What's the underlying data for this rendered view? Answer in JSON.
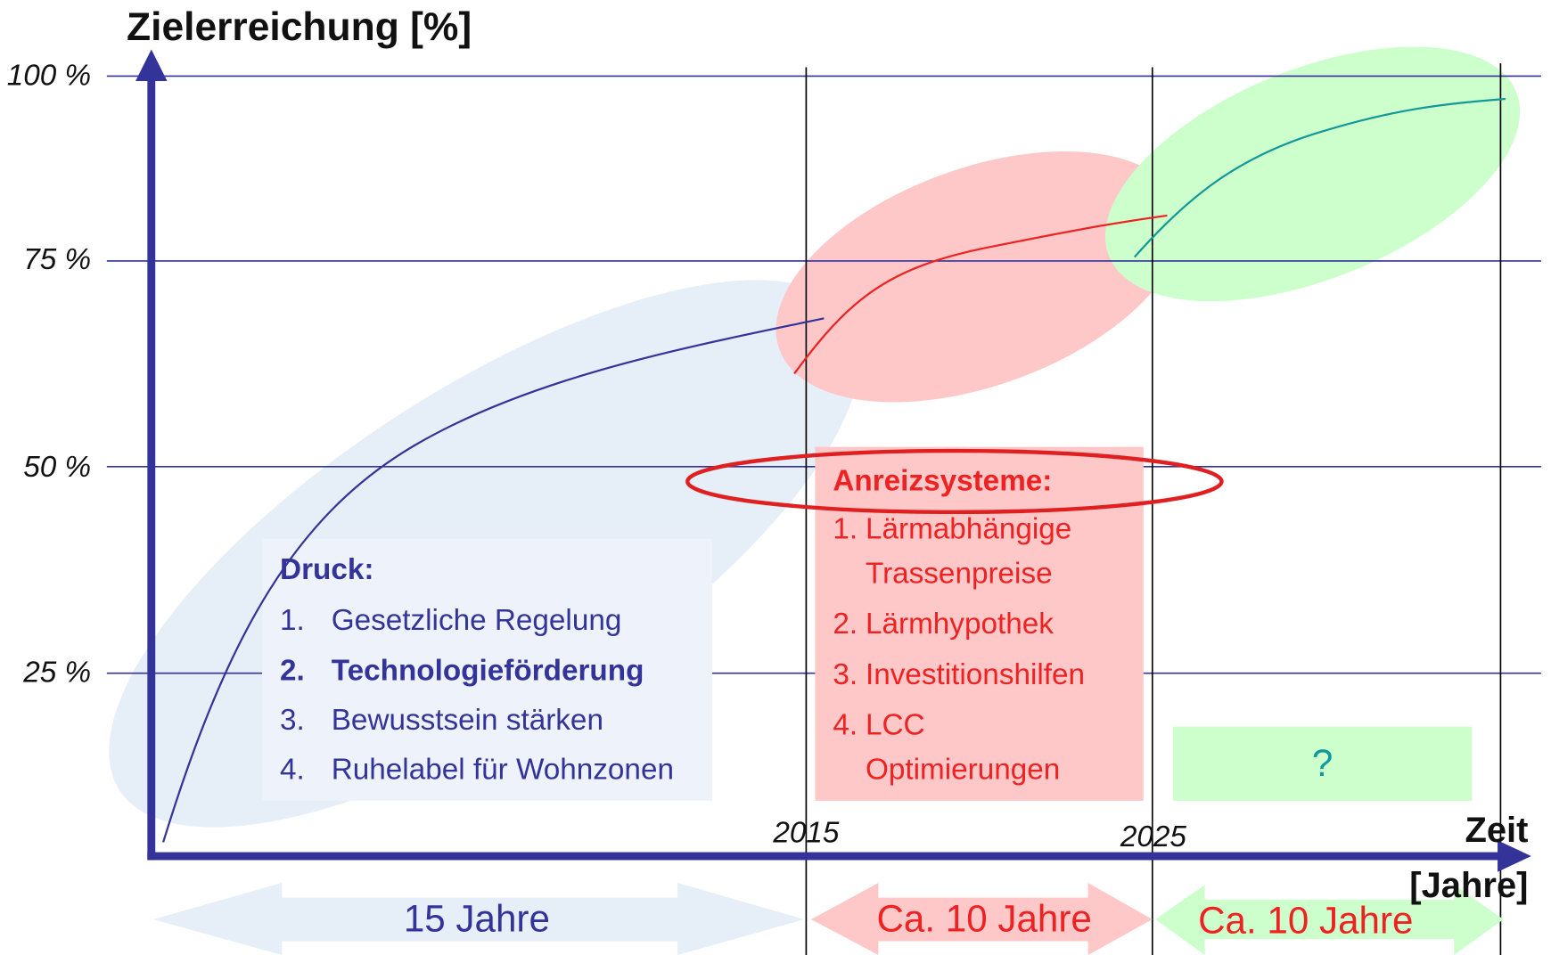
{
  "axis": {
    "y_label": "Zielerreichung [%]",
    "y_ticks": [
      "100 %",
      "75 %",
      "50 %",
      "25 %"
    ],
    "x_label": [
      "Zeit",
      "[Jahre]"
    ],
    "x_ticks": [
      "2015",
      "2025"
    ]
  },
  "boxes": [
    {
      "title": "Druck:",
      "items": [
        {
          "number": "1.",
          "lines": [
            "Gesetzliche Regelung"
          ]
        },
        {
          "number": "2.",
          "lines": [
            "Technologieförderung"
          ]
        },
        {
          "number": "3.",
          "lines": [
            "Bewusstsein stärken"
          ]
        },
        {
          "number": "4.",
          "lines": [
            "Ruhelabel für Wohnzonen"
          ]
        }
      ]
    },
    {
      "title": "Anreizsysteme:",
      "items": [
        {
          "number": "1.",
          "lines": [
            "Lärmabhängige",
            "Trassenpreise"
          ]
        },
        {
          "number": "2.",
          "lines": [
            "Lärmhypothek"
          ]
        },
        {
          "number": "3.",
          "lines": [
            "Investitionshilfen"
          ]
        },
        {
          "number": "4.",
          "lines": [
            "LCC",
            "Optimierungen"
          ]
        }
      ]
    },
    {
      "title": "?"
    }
  ],
  "periods": [
    "15 Jahre",
    "Ca. 10 Jahre",
    "Ca. 10 Jahre"
  ]
}
